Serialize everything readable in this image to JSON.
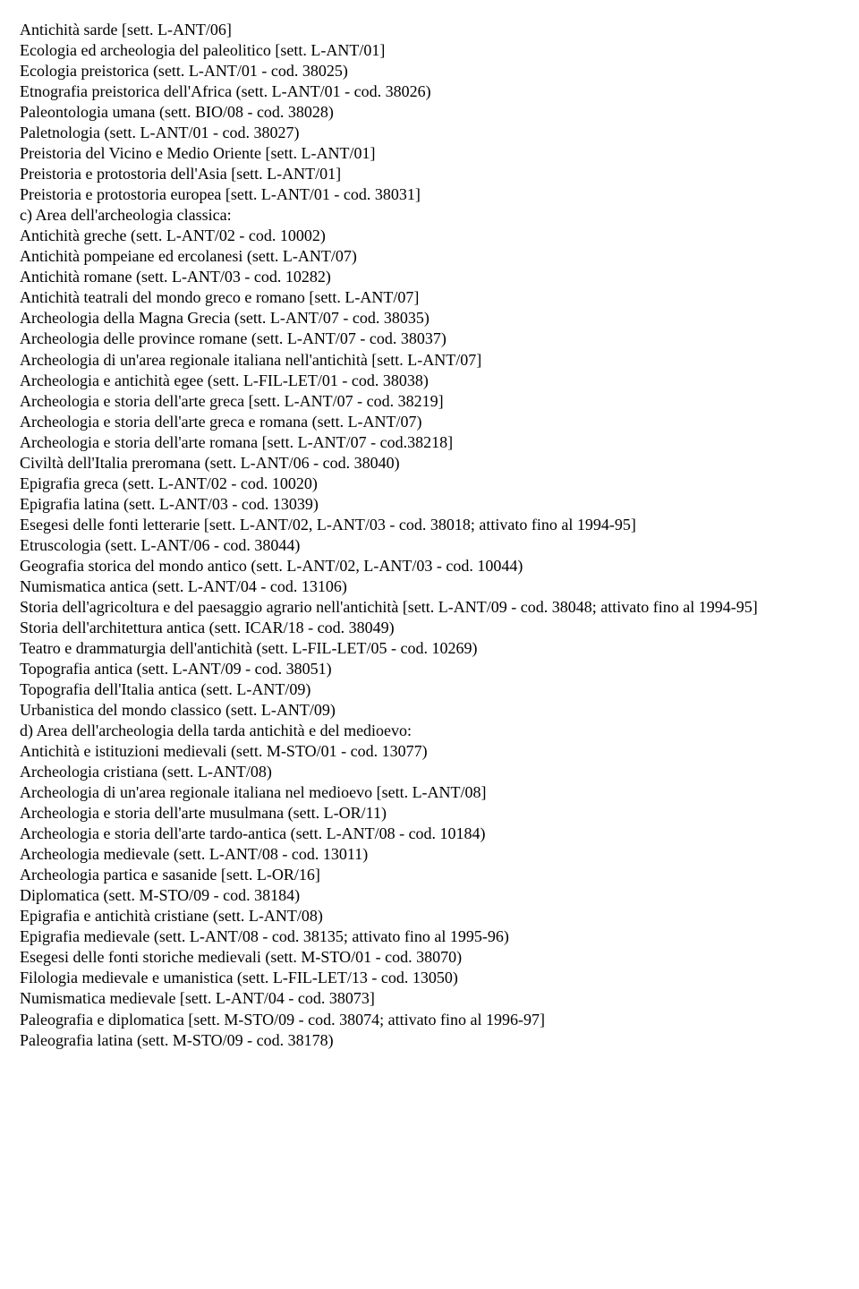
{
  "lines": [
    "Antichità sarde [sett. L-ANT/06]",
    "Ecologia ed archeologia del paleolitico [sett. L-ANT/01]",
    "Ecologia preistorica (sett. L-ANT/01 - cod. 38025)",
    "Etnografia preistorica dell'Africa (sett. L-ANT/01 - cod. 38026)",
    "Paleontologia umana (sett. BIO/08 - cod. 38028)",
    "Paletnologia (sett. L-ANT/01 - cod. 38027)",
    "Preistoria del Vicino e Medio Oriente [sett. L-ANT/01]",
    "Preistoria e protostoria dell'Asia [sett. L-ANT/01]",
    "Preistoria e protostoria europea [sett. L-ANT/01 - cod. 38031]",
    "c) Area dell'archeologia classica:",
    "Antichità greche (sett. L-ANT/02 - cod. 10002)",
    "Antichità pompeiane ed ercolanesi (sett. L-ANT/07)",
    "Antichità romane (sett. L-ANT/03 - cod. 10282)",
    "Antichità teatrali del mondo greco e romano [sett. L-ANT/07]",
    "Archeologia della Magna Grecia (sett. L-ANT/07 - cod. 38035)",
    "Archeologia delle province romane (sett. L-ANT/07 - cod. 38037)",
    "Archeologia di un'area regionale italiana nell'antichità [sett. L-ANT/07]",
    "Archeologia e antichità egee (sett. L-FIL-LET/01 - cod. 38038)",
    "Archeologia e storia dell'arte greca [sett. L-ANT/07 - cod. 38219]",
    "Archeologia e storia dell'arte greca e romana (sett. L-ANT/07)",
    "Archeologia e storia dell'arte romana [sett. L-ANT/07 - cod.38218]",
    "Civiltà dell'Italia preromana (sett. L-ANT/06 - cod. 38040)",
    "Epigrafia greca (sett. L-ANT/02 - cod. 10020)",
    "Epigrafia latina (sett. L-ANT/03 - cod. 13039)",
    "Esegesi delle fonti letterarie [sett. L-ANT/02, L-ANT/03 - cod. 38018; attivato fino al 1994-95]",
    "Etruscologia (sett. L-ANT/06 - cod. 38044)",
    "Geografia storica del mondo antico (sett. L-ANT/02, L-ANT/03 - cod. 10044)",
    "Numismatica antica (sett. L-ANT/04 - cod. 13106)",
    "Storia dell'agricoltura e del paesaggio agrario nell'antichità [sett. L-ANT/09 - cod. 38048; attivato fino al 1994-95]",
    "Storia dell'architettura antica (sett. ICAR/18 - cod. 38049)",
    "Teatro e drammaturgia dell'antichità (sett. L-FIL-LET/05 - cod. 10269)",
    "Topografia antica (sett. L-ANT/09 - cod. 38051)",
    "Topografia dell'Italia antica (sett. L-ANT/09)",
    "Urbanistica del mondo classico (sett. L-ANT/09)",
    "d) Area dell'archeologia della tarda antichità e del medioevo:",
    "Antichità e istituzioni medievali (sett. M-STO/01 - cod. 13077)",
    "Archeologia cristiana (sett. L-ANT/08)",
    "Archeologia di un'area regionale italiana nel medioevo [sett. L-ANT/08]",
    "Archeologia e storia dell'arte musulmana (sett. L-OR/11)",
    "Archeologia e storia dell'arte tardo-antica (sett. L-ANT/08 - cod. 10184)",
    "Archeologia medievale (sett. L-ANT/08 - cod. 13011)",
    "Archeologia partica e sasanide [sett. L-OR/16]",
    "Diplomatica (sett. M-STO/09 - cod. 38184)",
    "Epigrafia e antichità cristiane (sett. L-ANT/08)",
    "Epigrafia medievale (sett. L-ANT/08 - cod. 38135; attivato fino al 1995-96)",
    "Esegesi delle fonti storiche medievali (sett. M-STO/01 - cod. 38070)",
    "Filologia medievale e umanistica (sett. L-FIL-LET/13 - cod. 13050)",
    "Numismatica medievale [sett. L-ANT/04 - cod. 38073]",
    "Paleografia e diplomatica [sett. M-STO/09 - cod. 38074; attivato fino al 1996-97]",
    "Paleografia latina (sett. M-STO/09 - cod. 38178)"
  ]
}
